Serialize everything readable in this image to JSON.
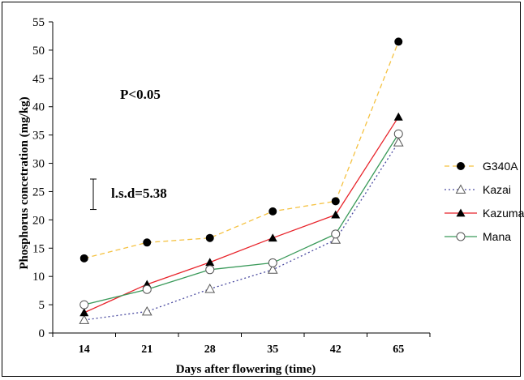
{
  "chart_data": {
    "type": "line",
    "categories": [
      "14",
      "21",
      "28",
      "35",
      "42",
      "65"
    ],
    "xlabel": "Days after flowering (time)",
    "ylabel": "Phosphorus concetration  (mg/kg)",
    "ylim": [
      0,
      55
    ],
    "yticks": [
      0,
      5,
      10,
      15,
      20,
      25,
      30,
      35,
      40,
      45,
      50,
      55
    ],
    "grid": false,
    "legend_position": "right",
    "annotations": {
      "significance": "P<0.05",
      "lsd_label": "l.s.d=5.38",
      "lsd_value": 5.38
    },
    "series": [
      {
        "name": "G340A",
        "values": [
          13.2,
          16.0,
          16.8,
          21.5,
          23.3,
          51.5
        ],
        "color": "#f5c242",
        "line_style": "dashed",
        "marker": "filled-circle"
      },
      {
        "name": "Kazai",
        "values": [
          2.3,
          3.8,
          7.8,
          11.2,
          16.5,
          33.7
        ],
        "color": "#4a4aa0",
        "line_style": "dotted",
        "marker": "open-triangle"
      },
      {
        "name": "Kazuma",
        "values": [
          3.6,
          8.6,
          12.5,
          16.8,
          20.9,
          38.2
        ],
        "color": "#e8232a",
        "line_style": "solid",
        "marker": "filled-triangle"
      },
      {
        "name": "Mana",
        "values": [
          5.0,
          7.7,
          11.2,
          12.4,
          17.5,
          35.2
        ],
        "color": "#3a9a5a",
        "line_style": "solid",
        "marker": "open-circle"
      }
    ]
  }
}
